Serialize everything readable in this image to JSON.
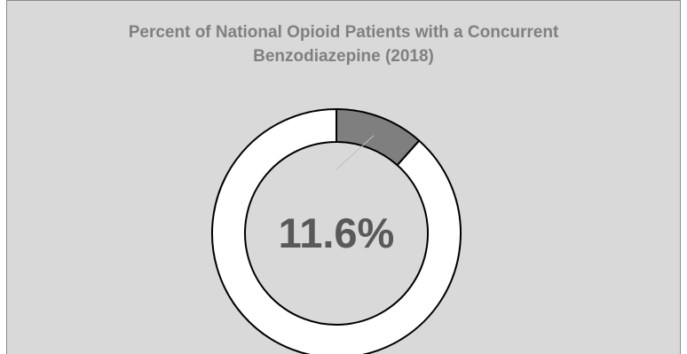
{
  "chart_data": {
    "type": "pie",
    "variant": "doughnut",
    "title_lines": [
      "Percent of National Opioid Patients with a Concurrent",
      "Benzodiazepine (2018)"
    ],
    "slices": [
      {
        "value": 11.6,
        "color": "#7f7f7f"
      },
      {
        "value": 88.4,
        "color": "#ffffff"
      }
    ],
    "center_label": "11.6%",
    "legend": "none",
    "background_color": "#d9d9d9",
    "title_color": "#808080"
  }
}
